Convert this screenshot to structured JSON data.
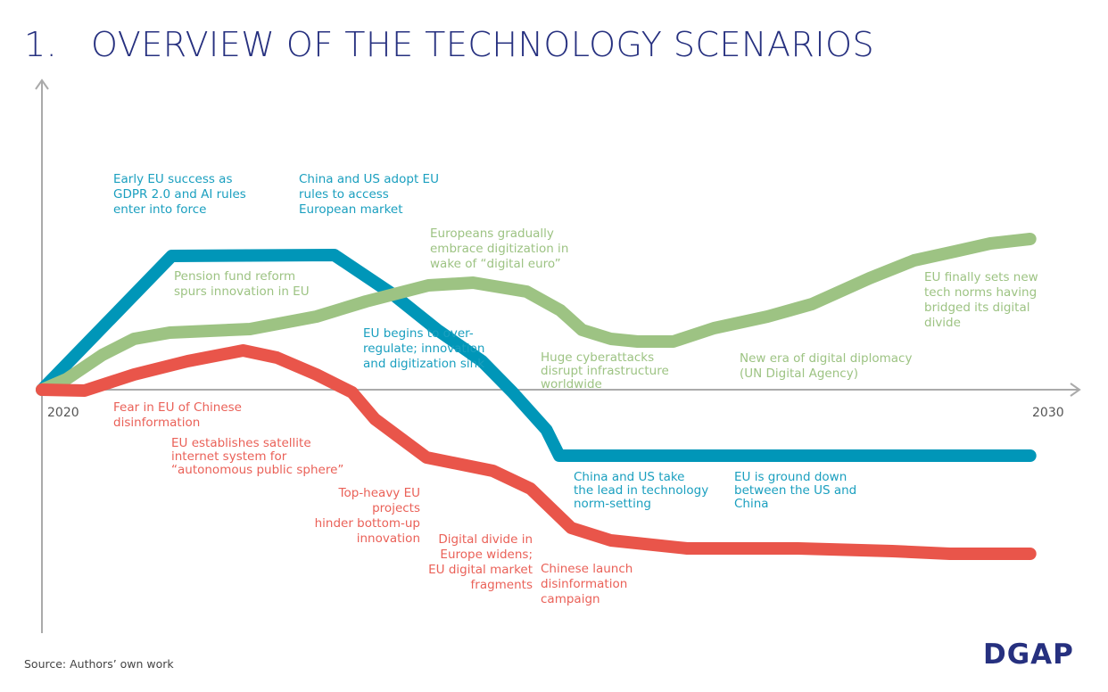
{
  "title": "1.   OVERVIEW OF THE TECHNOLOGY SCENARIOS",
  "source": "Source: Authors’ own work",
  "logo_text": "DGAP",
  "colors": {
    "title": "#26307f",
    "blue": "#0096b8",
    "green": "#9dc383",
    "red": "#e9554a",
    "axis": "#aaaaaa"
  },
  "chart_data": {
    "type": "line",
    "title": "",
    "xlabel": "",
    "ylabel": "",
    "xlim": [
      2020,
      2030
    ],
    "ylim": [
      -2.73,
      3.47
    ],
    "x_tick_labels": [
      "2020",
      "2030"
    ],
    "grid": false,
    "series": [
      {
        "color": "#0096b8",
        "x": [
          2020.0,
          2021.31,
          2022.95,
          2023.54,
          2023.99,
          2024.44,
          2024.75,
          2025.09,
          2025.22,
          2029.97
        ],
        "y": [
          0,
          1.5,
          1.51,
          1.07,
          0.67,
          0.32,
          -0.03,
          -0.45,
          -0.74,
          -0.74
        ]
      },
      {
        "color": "#9dc383",
        "x": [
          2020.0,
          2020.25,
          2020.61,
          2020.93,
          2021.29,
          2022.1,
          2022.77,
          2023.27,
          2023.9,
          2024.35,
          2024.89,
          2025.23,
          2025.45,
          2025.74,
          2026.01,
          2026.37,
          2026.78,
          2027.32,
          2027.77,
          2028.35,
          2028.8,
          2029.21,
          2029.57,
          2029.97
        ],
        "y": [
          0,
          0.12,
          0.39,
          0.57,
          0.64,
          0.68,
          0.82,
          0.99,
          1.17,
          1.2,
          1.1,
          0.89,
          0.67,
          0.57,
          0.54,
          0.54,
          0.69,
          0.82,
          0.96,
          1.25,
          1.45,
          1.55,
          1.64,
          1.69
        ]
      },
      {
        "color": "#e9554a",
        "x": [
          2020.0,
          2020.43,
          2020.93,
          2021.47,
          2022.03,
          2022.37,
          2022.77,
          2023.13,
          2023.36,
          2023.88,
          2024.55,
          2024.93,
          2025.34,
          2025.74,
          2026.51,
          2027.63,
          2028.58,
          2029.16,
          2029.97
        ],
        "y": [
          0,
          -0.01,
          0.17,
          0.32,
          0.44,
          0.36,
          0.17,
          -0.03,
          -0.33,
          -0.76,
          -0.91,
          -1.11,
          -1.55,
          -1.69,
          -1.78,
          -1.78,
          -1.81,
          -1.84,
          -1.84
        ]
      }
    ],
    "annotations": {
      "blue": [
        "Early EU success as\nGDPR 2.0 and AI rules\nenter into force",
        "China and US adopt EU\nrules to access\nEuropean market",
        "EU begins to over-\nregulate; innovation\nand digitization sink",
        "China and US take\nthe lead in technology\nnorm-setting",
        "EU is ground down\nbetween the US and\nChina"
      ],
      "green": [
        "Pension fund reform\nspurs innovation in EU",
        "Europeans gradually\nembrace digitization in\nwake of “digital euro”",
        "EU finally sets new\ntech norms having\nbridged its digital\ndivide",
        "Huge cyberattacks\ndisrupt infrastructure\nworldwide",
        "New era of digital diplomacy\n(UN Digital Agency)"
      ],
      "red": [
        "Fear in EU of Chinese\ndisinformation",
        "EU establishes satellite\ninternet system for\n“autonomous public sphere”",
        "Top-heavy EU\nprojects\nhinder bottom-up\ninnovation",
        "Digital divide in\nEurope widens;\nEU digital market\nfragments",
        "Chinese launch\ndisinformation\ncampaign"
      ]
    }
  }
}
